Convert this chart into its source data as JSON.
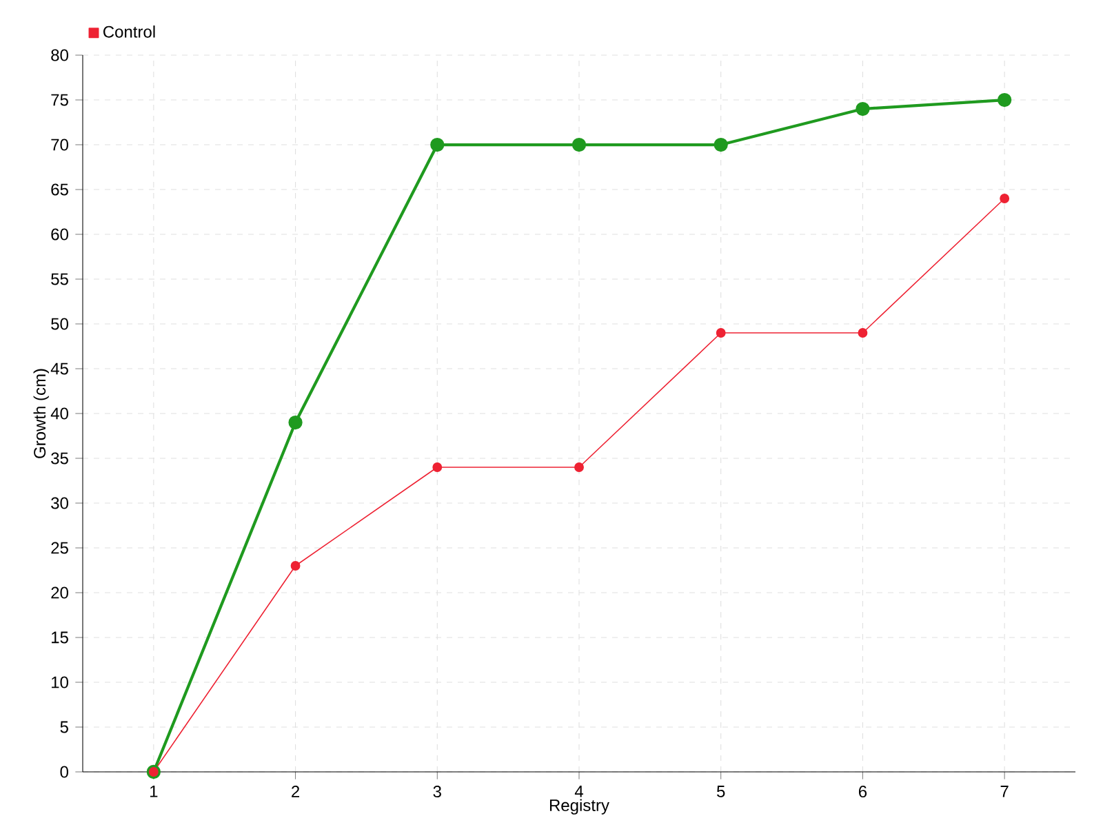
{
  "chart_data": {
    "type": "line",
    "xlabel": "Registry",
    "ylabel": "Growth (cm)",
    "categories": [
      "1",
      "2",
      "3",
      "4",
      "5",
      "6",
      "7"
    ],
    "series": [
      {
        "color": "#1f9a1f",
        "values": [
          0,
          39,
          70,
          70,
          70,
          74,
          75
        ]
      },
      {
        "name": "Control",
        "color": "#ee2233",
        "values": [
          0,
          23,
          34,
          34,
          49,
          49,
          64
        ]
      }
    ],
    "ylim": [
      0,
      80
    ],
    "yticks": [
      0,
      5,
      10,
      15,
      20,
      25,
      30,
      35,
      40,
      45,
      50,
      55,
      60,
      65,
      70,
      75,
      80
    ],
    "grid": true,
    "legend": "top left",
    "marker": "circle",
    "line_style": "solid"
  }
}
